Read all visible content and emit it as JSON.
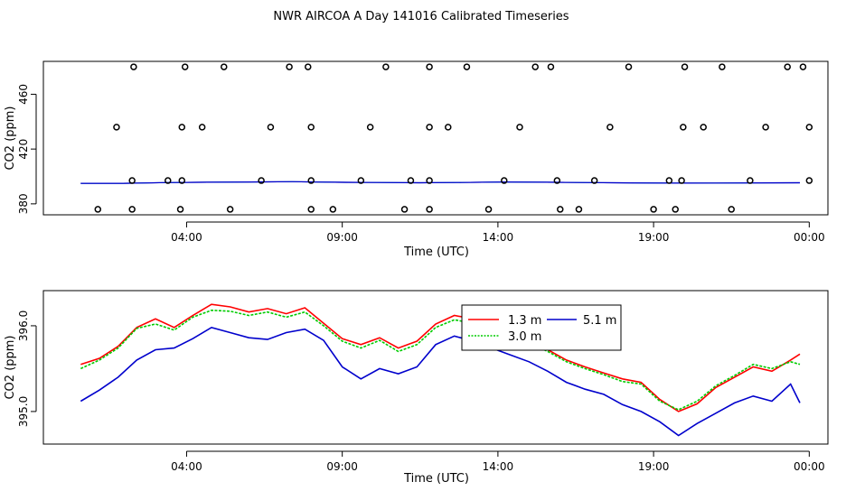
{
  "title": "NWR AIRCOA A  Day 141016  Calibrated Timeseries",
  "colors": {
    "red": "#ff0000",
    "green": "#00cc00",
    "blue": "#0000cc",
    "magenta": "#cc00cc",
    "cyan": "#00bbbb"
  },
  "chart_data": [
    {
      "type": "scatter",
      "title": "",
      "xlabel": "Time (UTC)",
      "ylabel": "CO2 (ppm)",
      "x_tick_labels": [
        "04:00",
        "09:00",
        "14:00",
        "19:00",
        "00:00"
      ],
      "x_ticks": [
        4,
        9,
        14,
        19,
        24
      ],
      "xlim": [
        -0.6,
        24.6
      ],
      "y_ticks": [
        380,
        420,
        460
      ],
      "ylim": [
        372,
        484
      ],
      "grid": false,
      "legend": "none",
      "points": [
        [
          1.15,
          376
        ],
        [
          2.25,
          376
        ],
        [
          3.8,
          376
        ],
        [
          5.4,
          376
        ],
        [
          8.0,
          376
        ],
        [
          8.7,
          376
        ],
        [
          11.0,
          376
        ],
        [
          11.8,
          376
        ],
        [
          13.7,
          376
        ],
        [
          16.0,
          376
        ],
        [
          16.6,
          376
        ],
        [
          19.0,
          376
        ],
        [
          19.7,
          376
        ],
        [
          21.5,
          376
        ],
        [
          2.25,
          397
        ],
        [
          3.4,
          397
        ],
        [
          3.85,
          397
        ],
        [
          6.4,
          397
        ],
        [
          8.0,
          397
        ],
        [
          9.6,
          397
        ],
        [
          11.2,
          397
        ],
        [
          11.8,
          397
        ],
        [
          14.2,
          397
        ],
        [
          15.9,
          397
        ],
        [
          17.1,
          397
        ],
        [
          19.5,
          397
        ],
        [
          19.9,
          397
        ],
        [
          22.1,
          397
        ],
        [
          24.0,
          397
        ],
        [
          1.75,
          436
        ],
        [
          3.85,
          436
        ],
        [
          4.5,
          436
        ],
        [
          6.7,
          436
        ],
        [
          8.0,
          436
        ],
        [
          9.9,
          436
        ],
        [
          11.8,
          436
        ],
        [
          12.4,
          436
        ],
        [
          14.7,
          436
        ],
        [
          17.6,
          436
        ],
        [
          19.95,
          436
        ],
        [
          20.6,
          436
        ],
        [
          22.6,
          436
        ],
        [
          24.0,
          436
        ],
        [
          2.3,
          480
        ],
        [
          3.95,
          480
        ],
        [
          5.2,
          480
        ],
        [
          7.3,
          480
        ],
        [
          7.9,
          480
        ],
        [
          10.4,
          480
        ],
        [
          11.8,
          480
        ],
        [
          13.0,
          480
        ],
        [
          15.2,
          480
        ],
        [
          15.7,
          480
        ],
        [
          18.2,
          480
        ],
        [
          20.0,
          480
        ],
        [
          21.2,
          480
        ],
        [
          23.3,
          480
        ],
        [
          23.8,
          480
        ]
      ],
      "series": [
        {
          "values": [
            395,
            395,
            395.5,
            395.8,
            396,
            396.2,
            395.8,
            395.6,
            395.4,
            395.6,
            396,
            395.8,
            395.5,
            395.3,
            395.1,
            395.2,
            395.3,
            395.4
          ]
        },
        {
          "values": [
            395,
            395,
            395.5,
            395.8,
            396,
            396.2,
            395.8,
            395.6,
            395.4,
            395.6,
            396,
            395.8,
            395.5,
            395.3,
            395.1,
            395.2,
            395.3,
            395.4
          ]
        },
        {
          "values": [
            395,
            395,
            395.5,
            395.8,
            396,
            396.2,
            395.8,
            395.6,
            395.4,
            395.6,
            396,
            395.8,
            395.5,
            395.3,
            395.1,
            395.2,
            395.3,
            395.4
          ]
        }
      ]
    },
    {
      "type": "line",
      "title": "",
      "xlabel": "Time (UTC)",
      "ylabel": "CO2 (ppm)",
      "x_tick_labels": [
        "04:00",
        "09:00",
        "14:00",
        "19:00",
        "00:00"
      ],
      "x_ticks": [
        4,
        9,
        14,
        19,
        24
      ],
      "xlim": [
        -0.6,
        24.6
      ],
      "y_tick_labels": [
        "395.0",
        "396.0"
      ],
      "y_ticks": [
        395.0,
        396.0
      ],
      "ylim": [
        394.62,
        396.41
      ],
      "grid": false,
      "legend": "top-center",
      "legend_entries": [
        {
          "name": "1.3 m",
          "color": "#ff0000"
        },
        {
          "name": "5.1 m",
          "color": "#0000cc"
        },
        {
          "name": "3.0 m",
          "color": "#00cc00"
        }
      ],
      "x": [
        0.6,
        1.2,
        1.8,
        2.4,
        3.0,
        3.6,
        4.2,
        4.8,
        5.4,
        6.0,
        6.6,
        7.2,
        7.8,
        8.4,
        9.0,
        9.6,
        10.2,
        10.8,
        11.4,
        12.0,
        12.6,
        13.2,
        13.8,
        14.4,
        15.0,
        15.6,
        16.2,
        16.8,
        17.4,
        18.0,
        18.6,
        19.2,
        19.8,
        20.4,
        21.0,
        21.6,
        22.2,
        22.8,
        23.4,
        23.7
      ],
      "series": [
        {
          "name": "1.3 m",
          "values": [
            395.55,
            395.62,
            395.76,
            395.98,
            396.08,
            395.98,
            396.12,
            396.25,
            396.22,
            396.16,
            396.2,
            396.14,
            396.21,
            396.03,
            395.85,
            395.78,
            395.86,
            395.74,
            395.82,
            396.02,
            396.12,
            396.08,
            396.0,
            395.92,
            395.82,
            395.72,
            395.6,
            395.52,
            395.45,
            395.38,
            395.34,
            395.14,
            395.0,
            395.09,
            395.28,
            395.4,
            395.52,
            395.47,
            395.6,
            395.67
          ]
        },
        {
          "name": "3.0 m",
          "values": [
            395.5,
            395.6,
            395.74,
            395.97,
            396.02,
            395.95,
            396.1,
            396.18,
            396.17,
            396.12,
            396.16,
            396.1,
            396.16,
            396.0,
            395.82,
            395.74,
            395.83,
            395.7,
            395.78,
            395.98,
            396.07,
            396.03,
            395.96,
            395.89,
            395.8,
            395.7,
            395.58,
            395.5,
            395.43,
            395.35,
            395.32,
            395.12,
            395.02,
            395.12,
            395.3,
            395.42,
            395.55,
            395.5,
            395.58,
            395.55
          ]
        },
        {
          "name": "5.1 m",
          "values": [
            395.12,
            395.25,
            395.4,
            395.6,
            395.72,
            395.74,
            395.85,
            395.98,
            395.92,
            395.86,
            395.84,
            395.92,
            395.96,
            395.83,
            395.52,
            395.38,
            395.5,
            395.44,
            395.52,
            395.78,
            395.88,
            395.82,
            395.74,
            395.66,
            395.58,
            395.47,
            395.34,
            395.26,
            395.2,
            395.08,
            395.0,
            394.88,
            394.72,
            394.86,
            394.98,
            395.1,
            395.18,
            395.12,
            395.32,
            395.1
          ]
        }
      ]
    }
  ]
}
